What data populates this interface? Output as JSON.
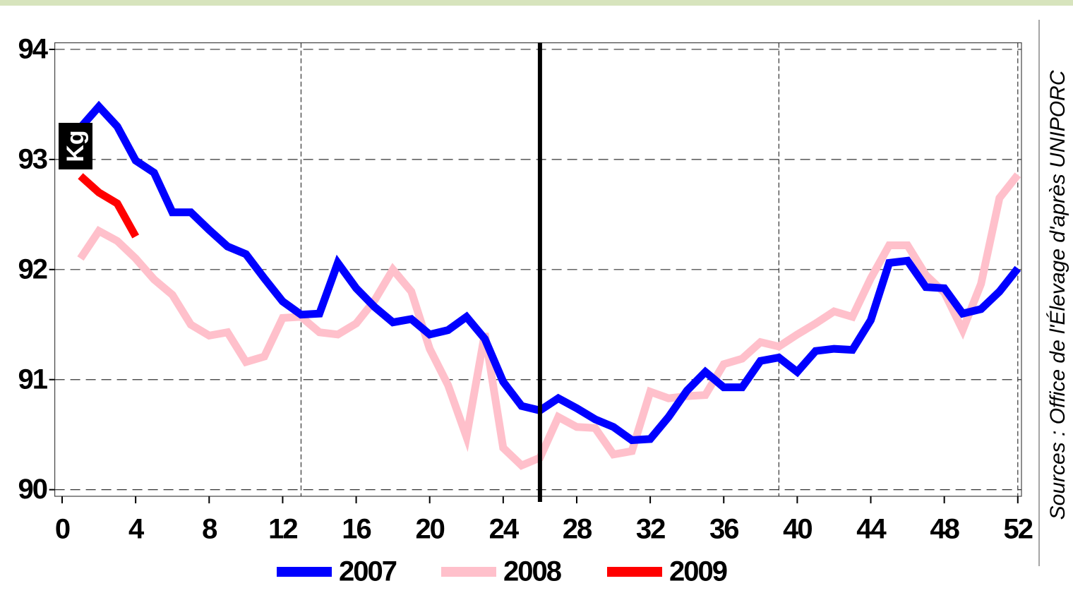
{
  "chart_data": {
    "type": "line",
    "y_label": "Kg",
    "source": "Sources : Office de l'Élevage d'après UNIPORC",
    "x": [
      1,
      2,
      3,
      4,
      5,
      6,
      7,
      8,
      9,
      10,
      11,
      12,
      13,
      14,
      15,
      16,
      17,
      18,
      19,
      20,
      21,
      22,
      23,
      24,
      25,
      26,
      27,
      28,
      29,
      30,
      31,
      32,
      33,
      34,
      35,
      36,
      37,
      38,
      39,
      40,
      41,
      42,
      43,
      44,
      45,
      46,
      47,
      48,
      49,
      50,
      51,
      52
    ],
    "series": [
      {
        "name": "2007",
        "color": "#0000ff",
        "values": [
          93.29,
          93.48,
          93.3,
          92.99,
          92.88,
          92.52,
          92.52,
          92.36,
          92.21,
          92.14,
          91.92,
          91.71,
          91.59,
          91.6,
          92.06,
          91.83,
          91.66,
          91.52,
          91.55,
          91.41,
          91.45,
          91.57,
          91.37,
          90.98,
          90.76,
          90.72,
          90.83,
          90.74,
          90.64,
          90.57,
          90.45,
          90.46,
          90.66,
          90.9,
          91.07,
          90.93,
          90.93,
          91.17,
          91.2,
          91.07,
          91.26,
          91.28,
          91.27,
          91.54,
          92.06,
          92.08,
          91.84,
          91.83,
          91.6,
          91.64,
          91.8,
          92.01
        ]
      },
      {
        "name": "2008",
        "color": "#ffc0cb",
        "values": [
          92.1,
          92.35,
          92.26,
          92.1,
          91.91,
          91.77,
          91.5,
          91.4,
          91.43,
          91.16,
          91.21,
          91.56,
          91.57,
          91.43,
          91.41,
          91.51,
          91.72,
          92.0,
          91.8,
          91.28,
          90.95,
          90.48,
          91.42,
          90.38,
          90.22,
          90.29,
          90.66,
          90.57,
          90.56,
          90.32,
          90.35,
          90.89,
          90.83,
          90.85,
          90.86,
          91.14,
          91.19,
          91.34,
          91.3,
          91.41,
          91.51,
          91.62,
          91.57,
          91.92,
          92.22,
          92.22,
          91.95,
          91.79,
          91.45,
          91.87,
          92.65,
          92.86
        ]
      },
      {
        "name": "2009",
        "color": "#ff0000",
        "values": [
          92.85,
          92.7,
          92.6,
          92.3,
          null,
          null,
          null,
          null,
          null,
          null,
          null,
          null,
          null,
          null,
          null,
          null,
          null,
          null,
          null,
          null,
          null,
          null,
          null,
          null,
          null,
          null,
          null,
          null,
          null,
          null,
          null,
          null,
          null,
          null,
          null,
          null,
          null,
          null,
          null,
          null,
          null,
          null,
          null,
          null,
          null,
          null,
          null,
          null,
          null,
          null,
          null,
          null
        ]
      }
    ],
    "xlim": [
      -0.4,
      52.2
    ],
    "xticks": [
      0,
      4,
      8,
      12,
      16,
      20,
      24,
      28,
      32,
      36,
      40,
      44,
      48,
      52
    ],
    "ylim": [
      89.94,
      94.06
    ],
    "yticks": [
      90,
      91,
      92,
      93,
      94
    ],
    "x_grid": [
      13,
      26,
      39,
      52
    ],
    "marker_x": 26,
    "grid": true
  }
}
